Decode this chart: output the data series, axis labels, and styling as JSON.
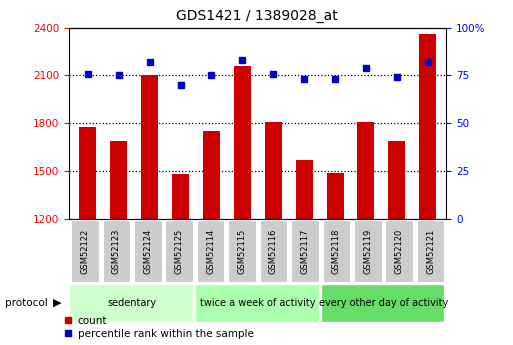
{
  "title": "GDS1421 / 1389028_at",
  "samples": [
    "GSM52122",
    "GSM52123",
    "GSM52124",
    "GSM52125",
    "GSM52114",
    "GSM52115",
    "GSM52116",
    "GSM52117",
    "GSM52118",
    "GSM52119",
    "GSM52120",
    "GSM52121"
  ],
  "counts": [
    1780,
    1690,
    2100,
    1480,
    1750,
    2160,
    1810,
    1570,
    1490,
    1810,
    1690,
    2360
  ],
  "percentiles": [
    76,
    75,
    82,
    70,
    75,
    83,
    76,
    73,
    73,
    79,
    74,
    82
  ],
  "groups": [
    {
      "label": "sedentary",
      "start": 0,
      "end": 4,
      "color": "#ccffcc"
    },
    {
      "label": "twice a week of activity",
      "start": 4,
      "end": 8,
      "color": "#aaffaa"
    },
    {
      "label": "every other day of activity",
      "start": 8,
      "end": 12,
      "color": "#66dd66"
    }
  ],
  "ylim_left": [
    1200,
    2400
  ],
  "ylim_right": [
    0,
    100
  ],
  "yticks_left": [
    1200,
    1500,
    1800,
    2100,
    2400
  ],
  "yticks_right": [
    0,
    25,
    50,
    75,
    100
  ],
  "bar_color": "#cc0000",
  "dot_color": "#0000cc",
  "bg_color": "#ffffff",
  "protocol_label": "protocol",
  "legend_count": "count",
  "legend_percentile": "percentile rank within the sample",
  "sample_box_color": "#cccccc",
  "gridline_ticks": [
    1500,
    1800,
    2100
  ]
}
